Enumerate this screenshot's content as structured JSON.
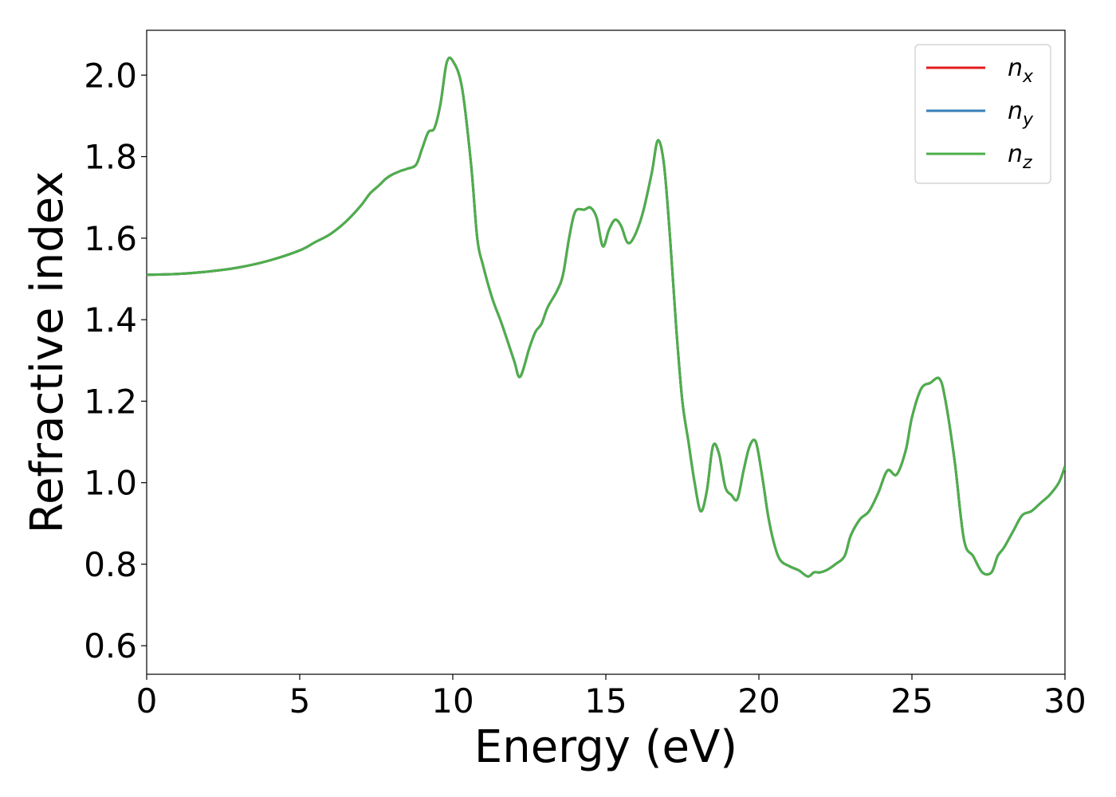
{
  "chart_data": {
    "type": "line",
    "title": "",
    "xlabel": "Energy (eV)",
    "ylabel": "Refractive index",
    "xlim": [
      0,
      30
    ],
    "ylim": [
      0.53,
      2.11
    ],
    "xticks": [
      0,
      5,
      10,
      15,
      20,
      25,
      30
    ],
    "xtick_labels": [
      "0",
      "5",
      "10",
      "15",
      "20",
      "25",
      "30"
    ],
    "yticks": [
      0.6,
      0.8,
      1.0,
      1.2,
      1.4,
      1.6,
      1.8,
      2.0
    ],
    "ytick_labels": [
      "0.6",
      "0.8",
      "1.0",
      "1.2",
      "1.4",
      "1.6",
      "1.8",
      "2.0"
    ],
    "grid": false,
    "legend_position": "top-right",
    "series": [
      {
        "name": "n_x",
        "legend_base": "n",
        "legend_sub": "x",
        "color": "#e41a1c",
        "x": [
          0,
          1,
          2,
          3,
          4,
          5,
          5.5,
          6,
          6.5,
          7,
          7.3,
          7.6,
          7.8,
          8,
          8.3,
          8.5,
          8.8,
          9,
          9.2,
          9.4,
          9.6,
          9.8,
          10,
          10.3,
          10.6,
          10.8,
          11,
          11.3,
          11.6,
          12,
          12.2,
          12.5,
          12.7,
          12.9,
          13.1,
          13.4,
          13.6,
          13.8,
          14,
          14.3,
          14.5,
          14.7,
          14.9,
          15.1,
          15.3,
          15.5,
          15.7,
          15.9,
          16.2,
          16.5,
          16.7,
          16.9,
          17.1,
          17.3,
          17.5,
          17.7,
          17.9,
          18.1,
          18.3,
          18.5,
          18.7,
          18.9,
          19.1,
          19.3,
          19.5,
          19.7,
          19.9,
          20.1,
          20.3,
          20.5,
          20.7,
          21,
          21.3,
          21.6,
          21.8,
          22,
          22.2,
          22.5,
          22.8,
          23,
          23.3,
          23.6,
          23.9,
          24.2,
          24.5,
          24.8,
          25,
          25.3,
          25.6,
          25.9,
          26.1,
          26.4,
          26.7,
          27,
          27.3,
          27.6,
          27.8,
          28,
          28.3,
          28.6,
          28.9,
          29.2,
          29.5,
          29.8,
          30
        ],
        "y": [
          1.51,
          1.512,
          1.518,
          1.528,
          1.545,
          1.57,
          1.59,
          1.61,
          1.64,
          1.68,
          1.71,
          1.73,
          1.745,
          1.755,
          1.765,
          1.77,
          1.78,
          1.82,
          1.86,
          1.87,
          1.93,
          2.03,
          2.035,
          1.97,
          1.78,
          1.6,
          1.53,
          1.45,
          1.39,
          1.3,
          1.26,
          1.33,
          1.37,
          1.39,
          1.43,
          1.47,
          1.51,
          1.6,
          1.665,
          1.67,
          1.675,
          1.65,
          1.58,
          1.62,
          1.645,
          1.63,
          1.59,
          1.6,
          1.66,
          1.76,
          1.84,
          1.78,
          1.6,
          1.38,
          1.2,
          1.1,
          1.0,
          0.93,
          0.98,
          1.09,
          1.07,
          0.99,
          0.97,
          0.96,
          1.03,
          1.09,
          1.1,
          1.02,
          0.92,
          0.85,
          0.81,
          0.795,
          0.785,
          0.77,
          0.78,
          0.78,
          0.785,
          0.8,
          0.82,
          0.87,
          0.91,
          0.93,
          0.975,
          1.03,
          1.02,
          1.08,
          1.16,
          1.23,
          1.245,
          1.255,
          1.2,
          1.05,
          0.86,
          0.82,
          0.78,
          0.78,
          0.82,
          0.84,
          0.88,
          0.92,
          0.93,
          0.95,
          0.97,
          1.0,
          1.04
        ]
      },
      {
        "name": "n_y",
        "legend_base": "n",
        "legend_sub": "y",
        "color": "#377eb8",
        "x": [
          0,
          1,
          2,
          3,
          4,
          5,
          5.5,
          6,
          6.5,
          7,
          7.3,
          7.6,
          7.8,
          8,
          8.3,
          8.5,
          8.8,
          9,
          9.2,
          9.4,
          9.6,
          9.8,
          10,
          10.3,
          10.6,
          10.8,
          11,
          11.3,
          11.6,
          12,
          12.2,
          12.5,
          12.7,
          12.9,
          13.1,
          13.4,
          13.6,
          13.8,
          14,
          14.3,
          14.5,
          14.7,
          14.9,
          15.1,
          15.3,
          15.5,
          15.7,
          15.9,
          16.2,
          16.5,
          16.7,
          16.9,
          17.1,
          17.3,
          17.5,
          17.7,
          17.9,
          18.1,
          18.3,
          18.5,
          18.7,
          18.9,
          19.1,
          19.3,
          19.5,
          19.7,
          19.9,
          20.1,
          20.3,
          20.5,
          20.7,
          21,
          21.3,
          21.6,
          21.8,
          22,
          22.2,
          22.5,
          22.8,
          23,
          23.3,
          23.6,
          23.9,
          24.2,
          24.5,
          24.8,
          25,
          25.3,
          25.6,
          25.9,
          26.1,
          26.4,
          26.7,
          27,
          27.3,
          27.6,
          27.8,
          28,
          28.3,
          28.6,
          28.9,
          29.2,
          29.5,
          29.8,
          30
        ],
        "y": [
          1.51,
          1.512,
          1.518,
          1.528,
          1.545,
          1.57,
          1.59,
          1.61,
          1.64,
          1.68,
          1.71,
          1.73,
          1.745,
          1.755,
          1.765,
          1.77,
          1.78,
          1.82,
          1.86,
          1.87,
          1.93,
          2.03,
          2.035,
          1.97,
          1.78,
          1.6,
          1.53,
          1.45,
          1.39,
          1.3,
          1.26,
          1.33,
          1.37,
          1.39,
          1.43,
          1.47,
          1.51,
          1.6,
          1.665,
          1.67,
          1.675,
          1.65,
          1.58,
          1.62,
          1.645,
          1.63,
          1.59,
          1.6,
          1.66,
          1.76,
          1.84,
          1.78,
          1.6,
          1.38,
          1.2,
          1.1,
          1.0,
          0.93,
          0.98,
          1.09,
          1.07,
          0.99,
          0.97,
          0.96,
          1.03,
          1.09,
          1.1,
          1.02,
          0.92,
          0.85,
          0.81,
          0.795,
          0.785,
          0.77,
          0.78,
          0.78,
          0.785,
          0.8,
          0.82,
          0.87,
          0.91,
          0.93,
          0.975,
          1.03,
          1.02,
          1.08,
          1.16,
          1.23,
          1.245,
          1.255,
          1.2,
          1.05,
          0.86,
          0.82,
          0.78,
          0.78,
          0.82,
          0.84,
          0.88,
          0.92,
          0.93,
          0.95,
          0.97,
          1.0,
          1.04
        ]
      },
      {
        "name": "n_z",
        "legend_base": "n",
        "legend_sub": "z",
        "color": "#4daf4a",
        "x": [
          0,
          1,
          2,
          3,
          4,
          5,
          5.5,
          6,
          6.5,
          7,
          7.3,
          7.6,
          7.8,
          8,
          8.3,
          8.5,
          8.8,
          9,
          9.2,
          9.4,
          9.6,
          9.8,
          10,
          10.3,
          10.6,
          10.8,
          11,
          11.3,
          11.6,
          12,
          12.2,
          12.5,
          12.7,
          12.9,
          13.1,
          13.4,
          13.6,
          13.8,
          14,
          14.3,
          14.5,
          14.7,
          14.9,
          15.1,
          15.3,
          15.5,
          15.7,
          15.9,
          16.2,
          16.5,
          16.7,
          16.9,
          17.1,
          17.3,
          17.5,
          17.7,
          17.9,
          18.1,
          18.3,
          18.5,
          18.7,
          18.9,
          19.1,
          19.3,
          19.5,
          19.7,
          19.9,
          20.1,
          20.3,
          20.5,
          20.7,
          21,
          21.3,
          21.6,
          21.8,
          22,
          22.2,
          22.5,
          22.8,
          23,
          23.3,
          23.6,
          23.9,
          24.2,
          24.5,
          24.8,
          25,
          25.3,
          25.6,
          25.9,
          26.1,
          26.4,
          26.7,
          27,
          27.3,
          27.6,
          27.8,
          28,
          28.3,
          28.6,
          28.9,
          29.2,
          29.5,
          29.8,
          30
        ],
        "y": [
          1.51,
          1.512,
          1.518,
          1.528,
          1.545,
          1.57,
          1.59,
          1.61,
          1.64,
          1.68,
          1.71,
          1.73,
          1.745,
          1.755,
          1.765,
          1.77,
          1.78,
          1.82,
          1.86,
          1.87,
          1.93,
          2.03,
          2.035,
          1.97,
          1.78,
          1.6,
          1.53,
          1.45,
          1.39,
          1.3,
          1.26,
          1.33,
          1.37,
          1.39,
          1.43,
          1.47,
          1.51,
          1.6,
          1.665,
          1.67,
          1.675,
          1.65,
          1.58,
          1.62,
          1.645,
          1.63,
          1.59,
          1.6,
          1.66,
          1.76,
          1.84,
          1.78,
          1.6,
          1.38,
          1.2,
          1.1,
          1.0,
          0.93,
          0.98,
          1.09,
          1.07,
          0.99,
          0.97,
          0.96,
          1.03,
          1.09,
          1.1,
          1.02,
          0.92,
          0.85,
          0.81,
          0.795,
          0.785,
          0.77,
          0.78,
          0.78,
          0.785,
          0.8,
          0.82,
          0.87,
          0.91,
          0.93,
          0.975,
          1.03,
          1.02,
          1.08,
          1.16,
          1.23,
          1.245,
          1.255,
          1.2,
          1.05,
          0.86,
          0.82,
          0.78,
          0.78,
          0.82,
          0.84,
          0.88,
          0.92,
          0.93,
          0.95,
          0.97,
          1.0,
          1.04
        ]
      }
    ]
  }
}
